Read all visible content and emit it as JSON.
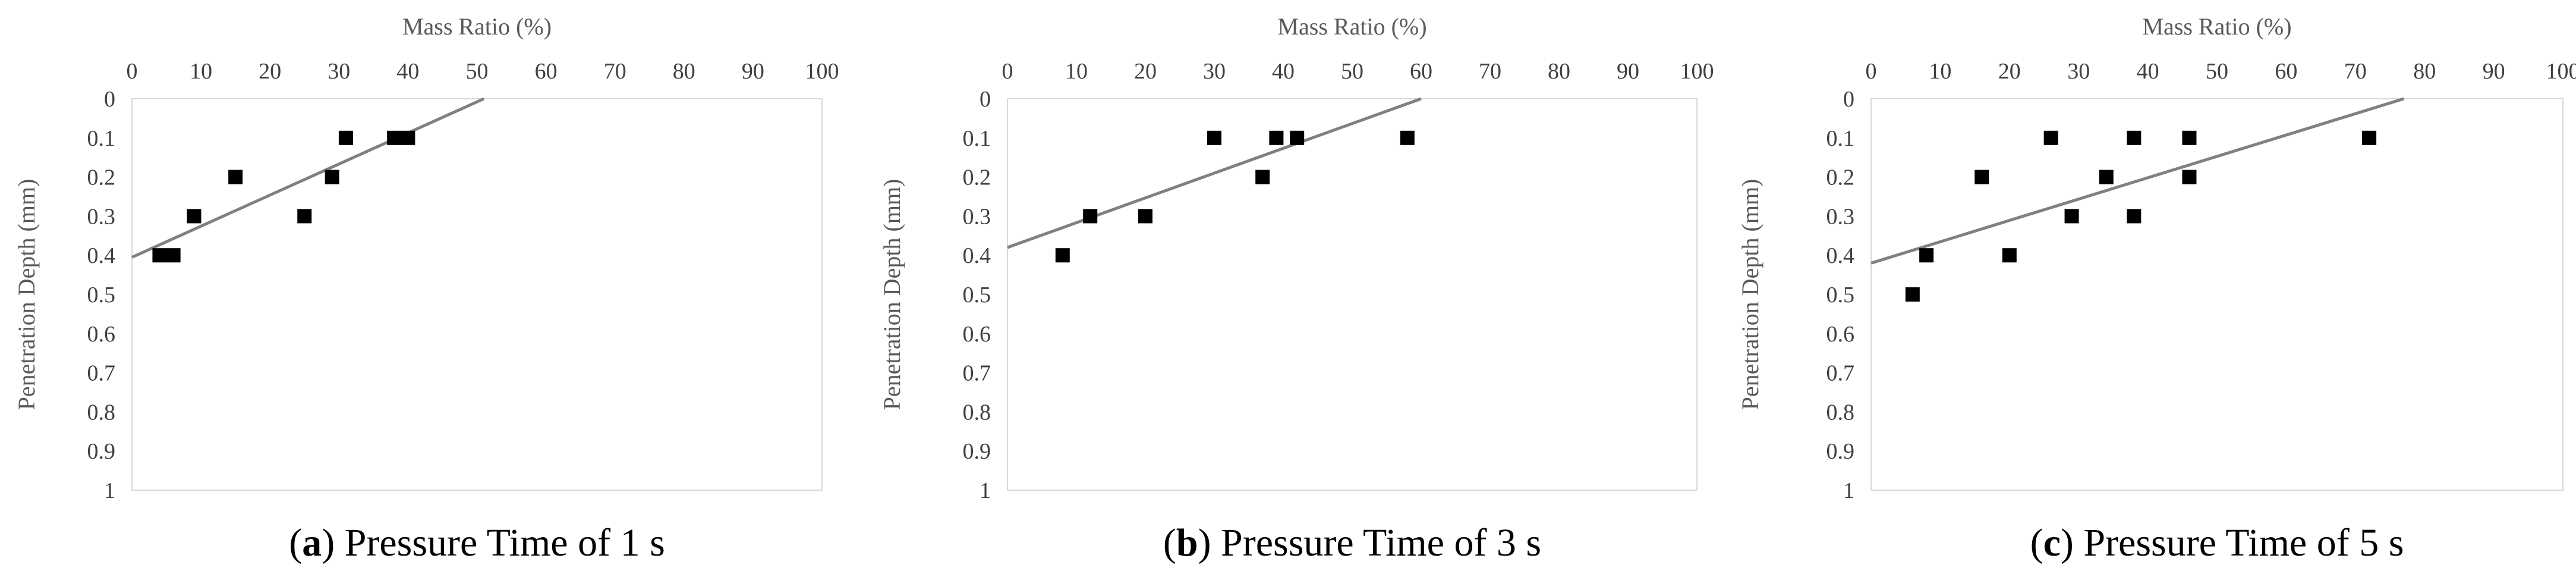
{
  "chart_data": [
    {
      "type": "scatter",
      "panel_label": "a",
      "caption": "Pressure Time of 1 s",
      "xlabel": "Mass Ratio (%)",
      "ylabel": "Penetration Depth (mm)",
      "xlim": [
        0,
        100
      ],
      "ylim": [
        0,
        1
      ],
      "y_inverted": true,
      "x_ticks": [
        "0",
        "10",
        "20",
        "30",
        "40",
        "50",
        "60",
        "70",
        "80",
        "90",
        "100"
      ],
      "y_ticks": [
        "0",
        "0.1",
        "0.2",
        "0.3",
        "0.4",
        "0.5",
        "0.6",
        "0.7",
        "0.8",
        "0.9",
        "1"
      ],
      "grid": false,
      "points": [
        {
          "x": 4,
          "y": 0.4
        },
        {
          "x": 6,
          "y": 0.4
        },
        {
          "x": 9,
          "y": 0.3
        },
        {
          "x": 15,
          "y": 0.2
        },
        {
          "x": 25,
          "y": 0.3
        },
        {
          "x": 29,
          "y": 0.2
        },
        {
          "x": 31,
          "y": 0.1
        },
        {
          "x": 38,
          "y": 0.1
        },
        {
          "x": 40,
          "y": 0.1
        }
      ],
      "trendline": {
        "x": [
          0,
          51
        ],
        "y": [
          0.405,
          0
        ]
      },
      "colors": {
        "marker": "#000000",
        "trendline": "#808080",
        "frame": "#d9d9d9"
      }
    },
    {
      "type": "scatter",
      "panel_label": "b",
      "caption": "Pressure Time of 3 s",
      "xlabel": "Mass Ratio (%)",
      "ylabel": "Penetration Depth (mm)",
      "xlim": [
        0,
        100
      ],
      "ylim": [
        0,
        1
      ],
      "y_inverted": true,
      "x_ticks": [
        "0",
        "10",
        "20",
        "30",
        "40",
        "50",
        "60",
        "70",
        "80",
        "90",
        "100"
      ],
      "y_ticks": [
        "0",
        "0.1",
        "0.2",
        "0.3",
        "0.4",
        "0.5",
        "0.6",
        "0.7",
        "0.8",
        "0.9",
        "1"
      ],
      "grid": false,
      "points": [
        {
          "x": 8,
          "y": 0.4
        },
        {
          "x": 12,
          "y": 0.3
        },
        {
          "x": 20,
          "y": 0.3
        },
        {
          "x": 30,
          "y": 0.1
        },
        {
          "x": 37,
          "y": 0.2
        },
        {
          "x": 39,
          "y": 0.1
        },
        {
          "x": 42,
          "y": 0.1
        },
        {
          "x": 58,
          "y": 0.1
        }
      ],
      "trendline": {
        "x": [
          0,
          60
        ],
        "y": [
          0.38,
          0
        ]
      },
      "colors": {
        "marker": "#000000",
        "trendline": "#808080",
        "frame": "#d9d9d9"
      }
    },
    {
      "type": "scatter",
      "panel_label": "c",
      "caption": "Pressure Time of 5 s",
      "xlabel": "Mass Ratio (%)",
      "ylabel": "Penetration Depth (mm)",
      "xlim": [
        0,
        100
      ],
      "ylim": [
        0,
        1
      ],
      "y_inverted": true,
      "x_ticks": [
        "0",
        "10",
        "20",
        "30",
        "40",
        "50",
        "60",
        "70",
        "80",
        "90",
        "100"
      ],
      "y_ticks": [
        "0",
        "0.1",
        "0.2",
        "0.3",
        "0.4",
        "0.5",
        "0.6",
        "0.7",
        "0.8",
        "0.9",
        "1"
      ],
      "grid": false,
      "points": [
        {
          "x": 6,
          "y": 0.5
        },
        {
          "x": 8,
          "y": 0.4
        },
        {
          "x": 16,
          "y": 0.2
        },
        {
          "x": 20,
          "y": 0.4
        },
        {
          "x": 26,
          "y": 0.1
        },
        {
          "x": 29,
          "y": 0.3
        },
        {
          "x": 34,
          "y": 0.2
        },
        {
          "x": 38,
          "y": 0.1
        },
        {
          "x": 38,
          "y": 0.3
        },
        {
          "x": 46,
          "y": 0.1
        },
        {
          "x": 46,
          "y": 0.2
        },
        {
          "x": 72,
          "y": 0.1
        }
      ],
      "trendline": {
        "x": [
          0,
          77
        ],
        "y": [
          0.42,
          0
        ]
      },
      "colors": {
        "marker": "#000000",
        "trendline": "#808080",
        "frame": "#d9d9d9"
      }
    }
  ]
}
